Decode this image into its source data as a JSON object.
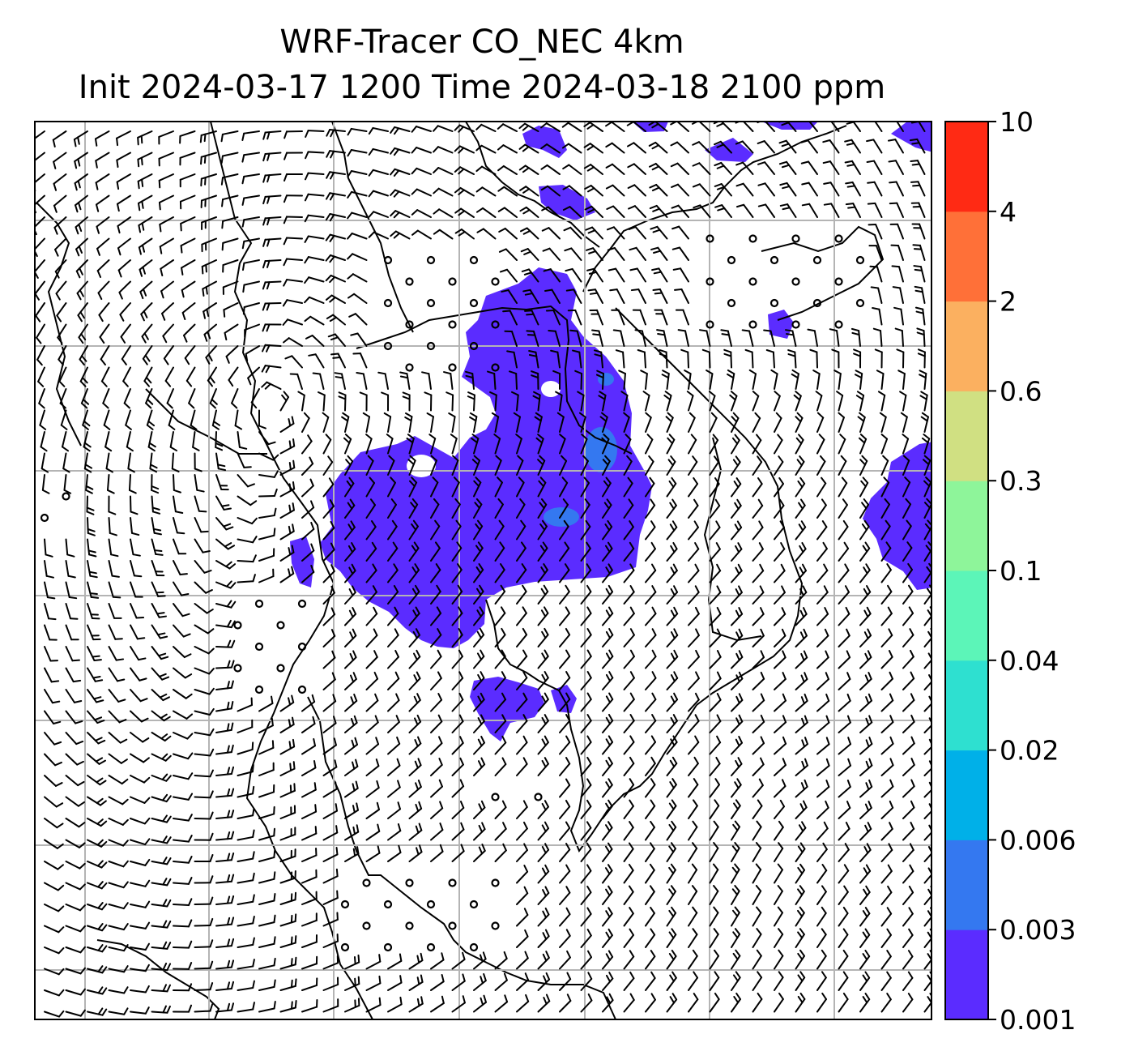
{
  "title": {
    "line1": "WRF-Tracer CO_NEC 4km",
    "line2": "Init 2024-03-17 1200 Time 2024-03-18 2100 ppm"
  },
  "colorbar": {
    "levels": [
      "0.001",
      "0.003",
      "0.006",
      "0.02",
      "0.04",
      "0.1",
      "0.3",
      "0.6",
      "2",
      "4",
      "10"
    ],
    "colors": [
      "#5b2cff",
      "#3478f0",
      "#00b0e8",
      "#2ee0d0",
      "#5cf5b8",
      "#8ef59a",
      "#d0e082",
      "#fbb060",
      "#ff7038",
      "#ff2a14"
    ]
  },
  "field": {
    "name": "CO_NEC tracer",
    "units": "ppm",
    "dominant_level_color": "#5b2cff",
    "secondary_level_color": "#3478f0"
  },
  "overlays": {
    "wind_barbs": true,
    "calm_markers": true,
    "coastlines": true,
    "gridlines": true,
    "gridline_color": "#b4b4b4"
  }
}
